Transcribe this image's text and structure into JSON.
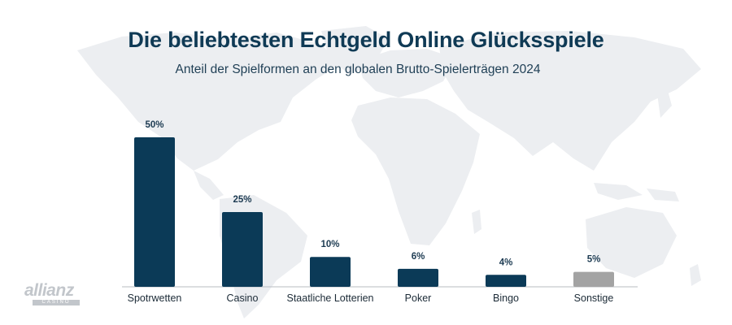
{
  "chart_data": {
    "type": "bar",
    "title": "Die beliebtesten Echtgeld Online Glücksspiele",
    "subtitle": "Anteil der Spielformen an den globalen Brutto-Spielerträgen 2024",
    "categories": [
      "Spotrwetten",
      "Casino",
      "Staatliche Lotterien",
      "Poker",
      "Bingo",
      "Sonstige"
    ],
    "values": [
      50,
      25,
      10,
      6,
      4,
      5
    ],
    "value_labels": [
      "50%",
      "25%",
      "10%",
      "6%",
      "4%",
      "5%"
    ],
    "bar_colors": [
      "#0b3a57",
      "#0b3a57",
      "#0b3a57",
      "#0b3a57",
      "#0b3a57",
      "#a3a3a3"
    ],
    "ylim": [
      0,
      50
    ],
    "grid": false,
    "xlabel": "",
    "ylabel": ""
  },
  "logo": {
    "word": "allianz",
    "sub": "CASINO"
  },
  "colors": {
    "title": "#0f3a55",
    "bar": "#0b3a57",
    "other_bar": "#a3a3a3",
    "map": "#e9ecef"
  }
}
